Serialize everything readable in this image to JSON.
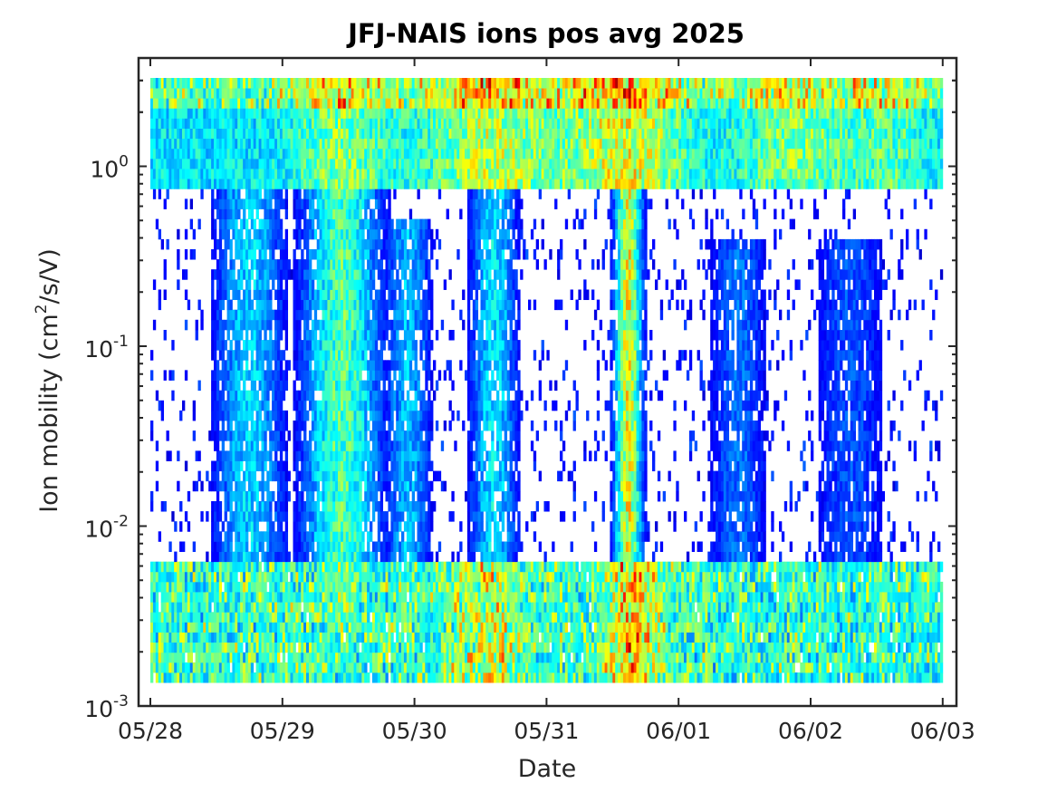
{
  "chart_data": {
    "type": "heatmap",
    "title": "JFJ-NAIS ions pos avg 2025",
    "xlabel": "Date",
    "ylabel": {
      "text": "Ion mobility (cm",
      "superscript": "2",
      "suffix": "/s/V)"
    },
    "x_ticks": [
      "05/28",
      "05/29",
      "05/30",
      "05/31",
      "06/01",
      "06/02",
      "06/03"
    ],
    "y_scale": "log",
    "ylim": [
      0.001,
      4.0
    ],
    "y_ticks": [
      {
        "base": "10",
        "exp": "-3",
        "value": 0.001
      },
      {
        "base": "10",
        "exp": "-2",
        "value": 0.01
      },
      {
        "base": "10",
        "exp": "-1",
        "value": 0.1
      },
      {
        "base": "10",
        "exp": "0",
        "value": 1
      }
    ],
    "colormap": "jet",
    "colors": {
      "low": "#0000c8",
      "mid": "#00ffff",
      "high_mid": "#ffff00",
      "high": "#c80000"
    },
    "data_extent": {
      "x_start_day": 0,
      "x_end_day": 6,
      "y_min": 0.00135,
      "y_max": 3.1
    },
    "bands": {
      "intermediate_ion_band_mobility": [
        0.0055,
        3.1
      ],
      "cluster_ion_band_mobility": [
        0.8,
        3.1
      ],
      "large_ion_band_mobility": [
        0.00135,
        0.0062
      ]
    }
  }
}
